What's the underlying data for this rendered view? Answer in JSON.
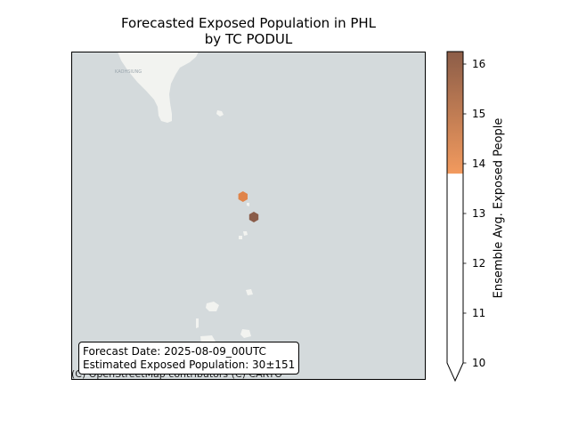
{
  "title": {
    "line1": "Forecasted Exposed Population in PHL",
    "line2": "by TC PODUL"
  },
  "map": {
    "basemap": "CARTO light",
    "sea_color": "#d4dadc",
    "land_color": "#f2f3f0",
    "city_label": "KAOHSIUNG",
    "attribution": "(C) OpenStreetMap contributors (C) CARTO"
  },
  "info_box": {
    "forecast_date": "Forecast Date: 2025-08-09_00UTC",
    "exposed_population": "Estimated Exposed Population: 30±151"
  },
  "chart_data": {
    "type": "heatmap",
    "description_of_marks": "hexbin cells",
    "cells": [
      {
        "value": 14.6,
        "color": "#e0844a"
      },
      {
        "value": 16.2,
        "color": "#8a5c49"
      }
    ],
    "colorbar": {
      "label": "Ensemble Avg. Exposed People",
      "min": 10,
      "max": 16.25,
      "extend": "min",
      "ticks": [
        "10",
        "11",
        "12",
        "13",
        "14",
        "15",
        "16"
      ],
      "white_below": 13.8,
      "color_low": "#f29a5e",
      "color_high": "#8c5d48"
    }
  }
}
